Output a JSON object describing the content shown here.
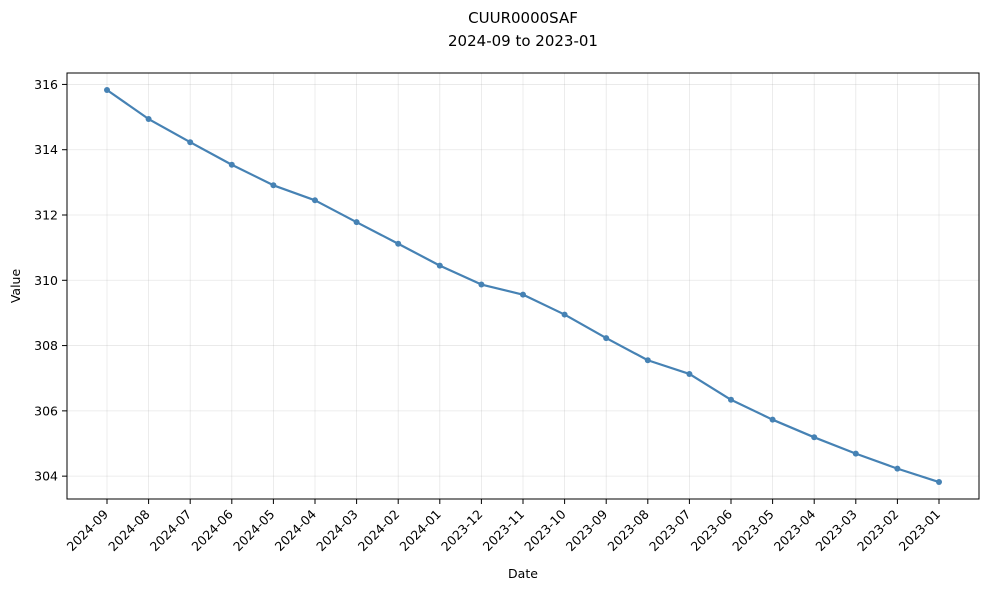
{
  "chart_data": {
    "type": "line",
    "title": "CUUR0000SAF",
    "subtitle": "2024-09 to 2023-01",
    "xlabel": "Date",
    "ylabel": "Value",
    "categories": [
      "2024-09",
      "2024-08",
      "2024-07",
      "2024-06",
      "2024-05",
      "2024-04",
      "2024-03",
      "2024-02",
      "2024-01",
      "2023-12",
      "2023-11",
      "2023-10",
      "2023-09",
      "2023-08",
      "2023-07",
      "2023-06",
      "2023-05",
      "2023-04",
      "2023-03",
      "2023-02",
      "2023-01"
    ],
    "series": [
      {
        "values": [
          315.83,
          314.94,
          314.23,
          313.54,
          312.91,
          312.45,
          311.78,
          311.12,
          310.45,
          309.87,
          309.56,
          308.95,
          308.23,
          307.55,
          307.13,
          306.34,
          305.73,
          305.19,
          304.69,
          304.23,
          303.82
        ],
        "color": "#4682b4"
      }
    ],
    "ylim": [
      303.3,
      316.35
    ],
    "yticks": [
      304,
      306,
      308,
      310,
      312,
      314,
      316
    ],
    "grid": true,
    "legend": "none"
  }
}
